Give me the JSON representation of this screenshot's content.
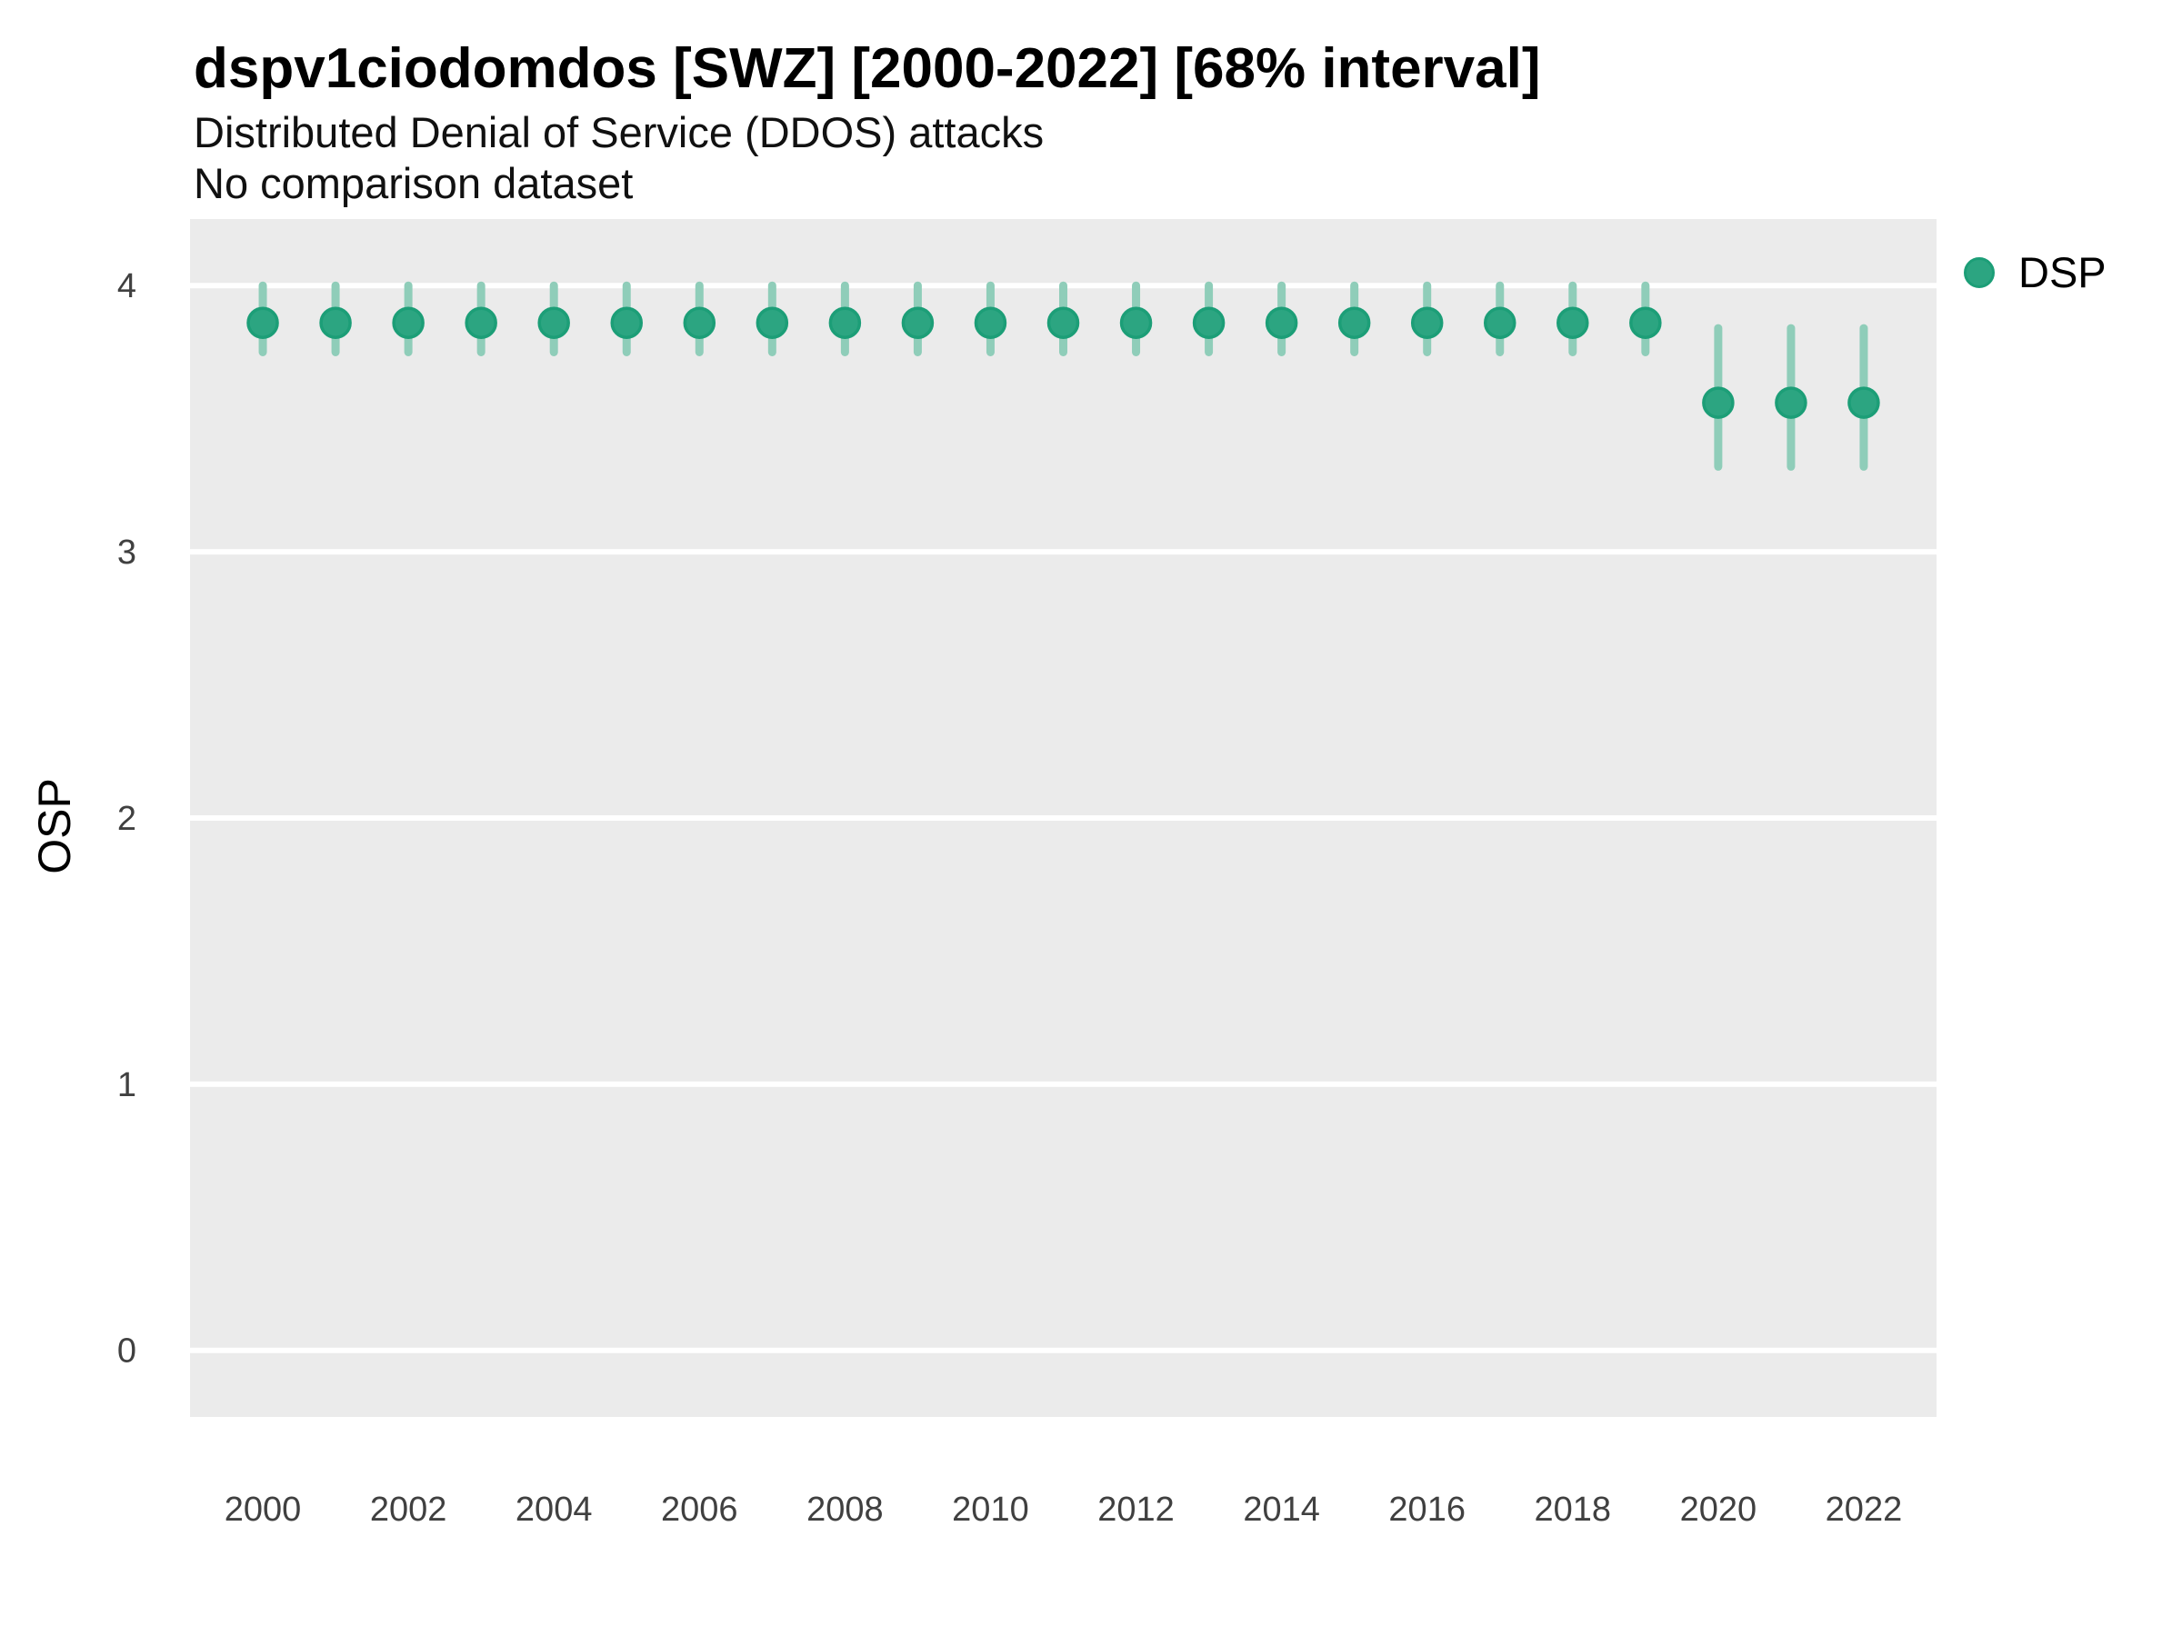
{
  "header": {
    "title": "dspv1ciodomdos [SWZ] [2000-2022] [68% interval]",
    "subtitle": "Distributed Denial of Service (DDOS) attacks",
    "comparison_note": "No comparison dataset"
  },
  "axes": {
    "y_label": "OSP"
  },
  "legend": {
    "position": "right",
    "items": [
      {
        "label": "DSP",
        "marker": "circle",
        "color": "#2BA47E"
      }
    ]
  },
  "chart_data": {
    "type": "scatter",
    "title": "dspv1ciodomdos [SWZ] [2000-2022] [68% interval]",
    "subtitle": "Distributed Denial of Service (DDOS) attacks",
    "comparison_note": "No comparison dataset",
    "xlabel": "",
    "ylabel": "OSP",
    "interval_level": "68%",
    "grid": "horizontal-major-only",
    "legend_position": "right",
    "x_ticks": [
      2000,
      2002,
      2004,
      2006,
      2008,
      2010,
      2012,
      2014,
      2016,
      2018,
      2020,
      2022
    ],
    "y_ticks": [
      0,
      1,
      2,
      3,
      4
    ],
    "xlim": [
      1999,
      2023
    ],
    "ylim": [
      -0.25,
      4.25
    ],
    "series": [
      {
        "name": "DSP",
        "x": [
          2000,
          2001,
          2002,
          2003,
          2004,
          2005,
          2006,
          2007,
          2008,
          2009,
          2010,
          2011,
          2012,
          2013,
          2014,
          2015,
          2016,
          2017,
          2018,
          2019,
          2020,
          2021,
          2022
        ],
        "values": [
          3.86,
          3.86,
          3.86,
          3.86,
          3.86,
          3.86,
          3.86,
          3.86,
          3.86,
          3.86,
          3.86,
          3.86,
          3.86,
          3.86,
          3.86,
          3.86,
          3.86,
          3.86,
          3.86,
          3.86,
          3.56,
          3.56,
          3.56
        ],
        "interval_low": [
          3.75,
          3.75,
          3.75,
          3.75,
          3.75,
          3.75,
          3.75,
          3.75,
          3.75,
          3.75,
          3.75,
          3.75,
          3.75,
          3.75,
          3.75,
          3.75,
          3.75,
          3.75,
          3.75,
          3.75,
          3.32,
          3.32,
          3.32
        ],
        "interval_high": [
          4.0,
          4.0,
          4.0,
          4.0,
          4.0,
          4.0,
          4.0,
          4.0,
          4.0,
          4.0,
          4.0,
          4.0,
          4.0,
          4.0,
          4.0,
          4.0,
          4.0,
          4.0,
          4.0,
          4.0,
          3.84,
          3.84,
          3.84
        ]
      }
    ],
    "colors": {
      "point_fill": "#2CA581",
      "point_stroke": "#1C9E77",
      "interval_bar": "#8FCDB9",
      "panel_background": "#EBEBEB",
      "gridline": "#FFFFFF",
      "tick_label": "#404040"
    }
  }
}
